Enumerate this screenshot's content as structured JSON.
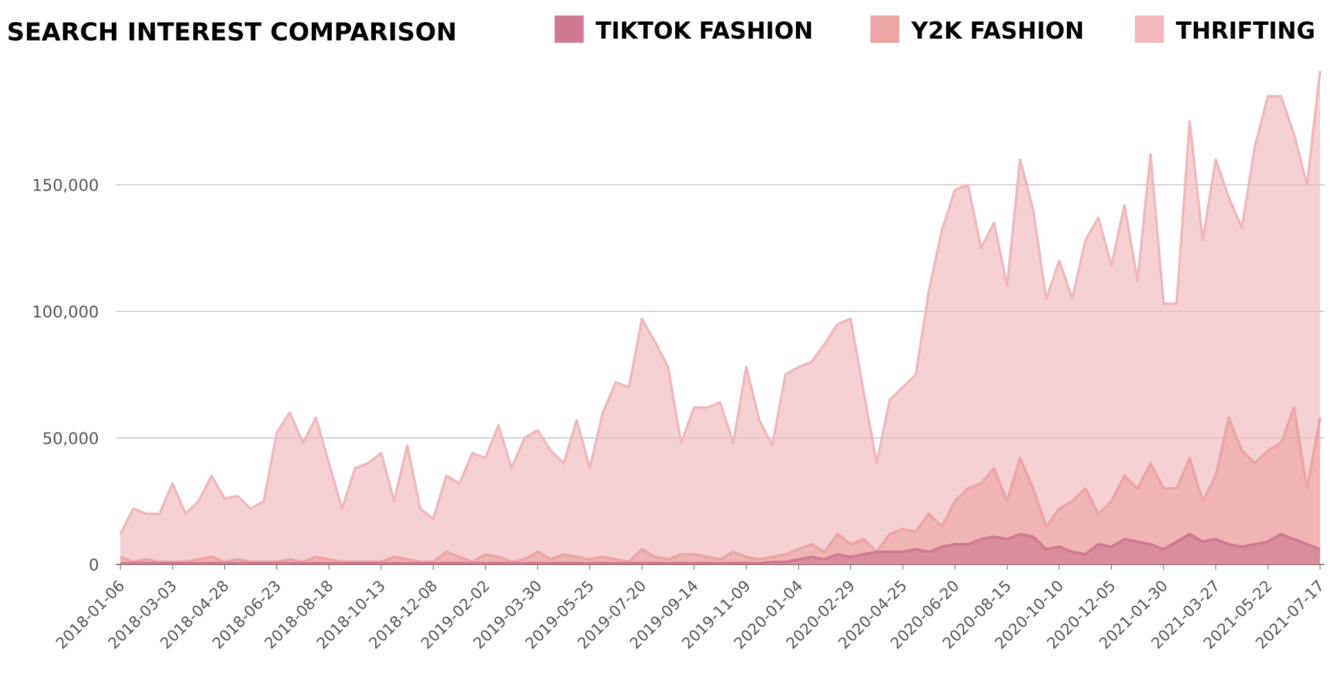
{
  "chart_data": {
    "type": "area",
    "title": "SEARCH INTEREST COMPARISON",
    "categories": [
      "2018-01-06",
      null,
      null,
      null,
      "2018-03-03",
      null,
      null,
      null,
      "2018-04-28",
      null,
      null,
      null,
      "2018-06-23",
      null,
      null,
      null,
      "2018-08-18",
      null,
      null,
      null,
      "2018-10-13",
      null,
      null,
      null,
      "2018-12-08",
      null,
      null,
      null,
      "2019-02-02",
      null,
      null,
      null,
      "2019-03-30",
      null,
      null,
      null,
      "2019-05-25",
      null,
      null,
      null,
      "2019-07-20",
      null,
      null,
      null,
      "2019-09-14",
      null,
      null,
      null,
      "2019-11-09",
      null,
      null,
      null,
      "2020-01-04",
      null,
      null,
      null,
      "2020-02-29",
      null,
      null,
      null,
      "2020-04-25",
      null,
      null,
      null,
      "2020-06-20",
      null,
      null,
      null,
      "2020-08-15",
      null,
      null,
      null,
      "2020-10-10",
      null,
      null,
      null,
      "2020-12-05",
      null,
      null,
      null,
      "2021-01-30",
      null,
      null,
      null,
      "2021-03-27",
      null,
      null,
      null,
      "2021-05-22",
      null,
      null,
      null,
      "2021-07-17"
    ],
    "series": [
      {
        "name": "THRIFTING",
        "color": "#f0b8bb",
        "values": [
          12000,
          22000,
          20000,
          20000,
          32000,
          20000,
          25000,
          35000,
          26000,
          27000,
          22000,
          25000,
          52000,
          60000,
          48000,
          58000,
          40000,
          22000,
          38000,
          40000,
          44000,
          25000,
          47000,
          22000,
          18000,
          35000,
          32000,
          44000,
          42000,
          55000,
          38000,
          50000,
          53000,
          45000,
          40000,
          57000,
          38000,
          60000,
          72000,
          70000,
          97000,
          88000,
          78000,
          48000,
          62000,
          62000,
          64000,
          48000,
          78000,
          57000,
          47000,
          75000,
          78000,
          80000,
          87000,
          95000,
          97000,
          68000,
          40000,
          65000,
          70000,
          75000,
          108000,
          132000,
          148000,
          150000,
          125000,
          135000,
          110000,
          160000,
          140000,
          105000,
          120000,
          105000,
          128000,
          137000,
          118000,
          142000,
          112000,
          162000,
          103000,
          103000,
          175000,
          128000,
          160000,
          145000,
          133000,
          165000,
          185000,
          185000,
          170000,
          150000,
          195000
        ]
      },
      {
        "name": "Y2K FASHION",
        "color": "#eca4a4",
        "values": [
          3000,
          1000,
          2000,
          1000,
          1000,
          1000,
          2000,
          3000,
          1000,
          2000,
          1000,
          1000,
          1000,
          2000,
          1000,
          3000,
          2000,
          1000,
          1000,
          1000,
          1000,
          3000,
          2000,
          1000,
          1000,
          5000,
          3000,
          1000,
          4000,
          3000,
          1000,
          2000,
          5000,
          2000,
          4000,
          3000,
          2000,
          3000,
          2000,
          1000,
          6000,
          3000,
          2000,
          4000,
          4000,
          3000,
          2000,
          5000,
          3000,
          2000,
          3000,
          4000,
          6000,
          8000,
          5000,
          12000,
          8000,
          10000,
          5000,
          12000,
          14000,
          13000,
          20000,
          15000,
          25000,
          30000,
          32000,
          38000,
          25000,
          42000,
          30000,
          15000,
          22000,
          25000,
          30000,
          20000,
          25000,
          35000,
          30000,
          40000,
          30000,
          30000,
          42000,
          25000,
          35000,
          58000,
          45000,
          40000,
          45000,
          48000,
          62000,
          30000,
          58000
        ]
      },
      {
        "name": "TIKTOK FASHION",
        "color": "#d07890",
        "values": [
          500,
          500,
          500,
          500,
          500,
          500,
          500,
          500,
          500,
          500,
          500,
          500,
          500,
          500,
          500,
          500,
          500,
          500,
          500,
          500,
          500,
          500,
          500,
          500,
          500,
          500,
          500,
          500,
          500,
          500,
          500,
          500,
          500,
          500,
          500,
          500,
          500,
          500,
          500,
          500,
          500,
          500,
          500,
          500,
          500,
          500,
          500,
          500,
          500,
          500,
          1000,
          1000,
          2000,
          3000,
          2000,
          4000,
          3000,
          4000,
          5000,
          5000,
          5000,
          6000,
          5000,
          7000,
          8000,
          8000,
          10000,
          11000,
          10000,
          12000,
          11000,
          6000,
          7000,
          5000,
          4000,
          8000,
          7000,
          10000,
          9000,
          8000,
          6000,
          9000,
          12000,
          9000,
          10000,
          8000,
          7000,
          8000,
          9000,
          12000,
          10000,
          8000,
          6000
        ]
      }
    ],
    "ylim": [
      0,
      196000
    ],
    "yticks": [
      0,
      {
        "value": 50000,
        "label": "50,000"
      },
      {
        "value": 100000,
        "label": "100,000"
      },
      {
        "value": 150000,
        "label": "150,000"
      }
    ],
    "grid": true
  }
}
